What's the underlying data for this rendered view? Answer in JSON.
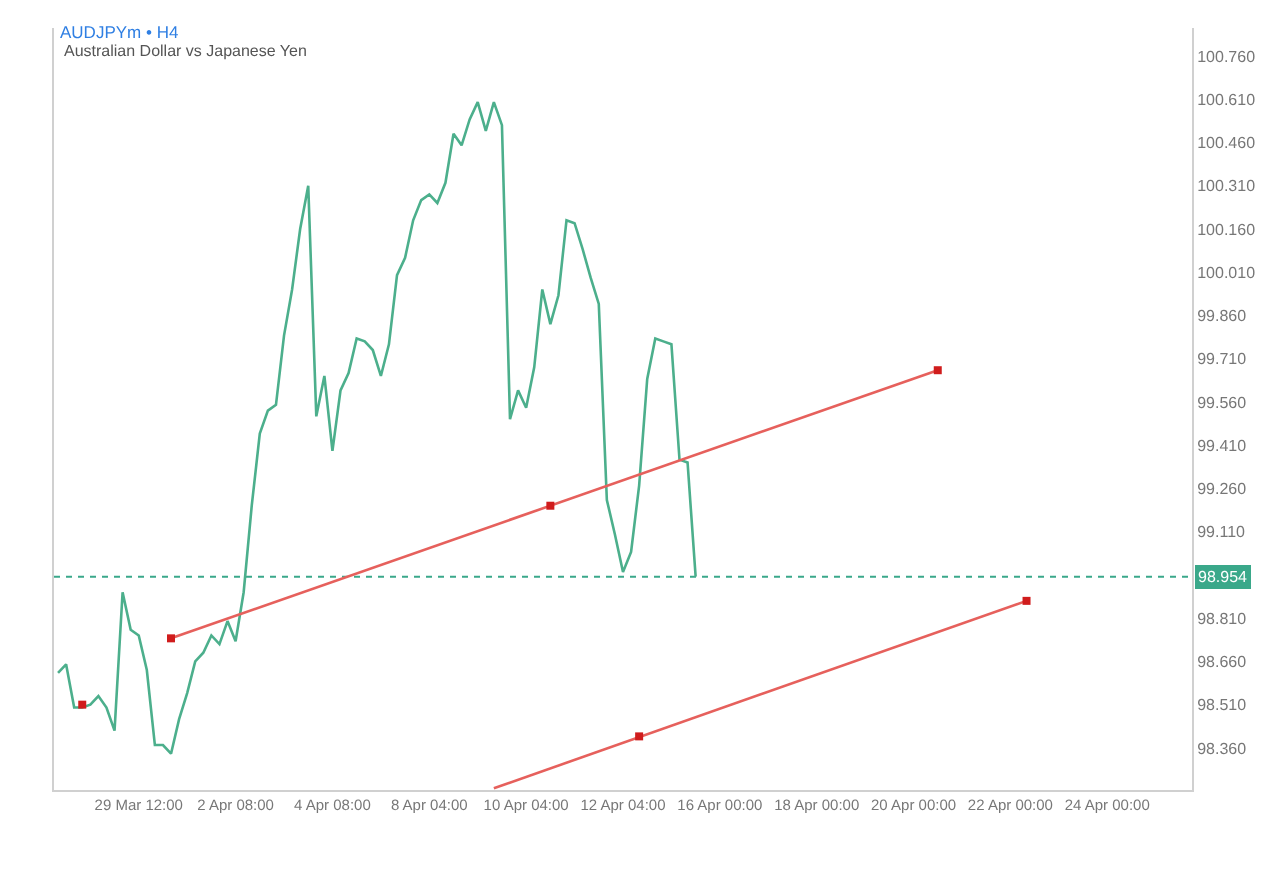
{
  "chart_data": {
    "type": "line",
    "title": "AUDJPYm • H4",
    "subtitle": "Australian Dollar vs Japanese Yen",
    "categories": [
      null,
      null,
      null,
      null,
      null,
      null,
      null,
      null,
      null,
      null,
      "29 Mar 12:00",
      null,
      null,
      null,
      null,
      null,
      null,
      null,
      null,
      null,
      null,
      null,
      "2 Apr 08:00",
      null,
      null,
      null,
      null,
      null,
      null,
      null,
      null,
      null,
      null,
      null,
      "4 Apr 08:00",
      null,
      null,
      null,
      null,
      null,
      null,
      null,
      null,
      null,
      null,
      null,
      "8 Apr 04:00",
      null,
      null,
      null,
      null,
      null,
      null,
      null,
      null,
      null,
      null,
      null,
      "10 Apr 04:00",
      null,
      null,
      null,
      null,
      null,
      null,
      null,
      null,
      null,
      null,
      null,
      "12 Apr 04:00",
      null,
      null,
      null,
      null,
      null,
      null,
      null,
      null,
      null,
      null,
      null,
      "16 Apr 00:00",
      null,
      null,
      null,
      null,
      null,
      null,
      null,
      null,
      null,
      null,
      null,
      "18 Apr 00:00",
      null,
      null,
      null,
      null,
      null,
      null,
      null,
      null,
      null,
      null,
      null,
      "20 Apr 00:00",
      null,
      null,
      null,
      null,
      null,
      null,
      null,
      null,
      null,
      null,
      null,
      "22 Apr 00:00",
      null,
      null,
      null,
      null,
      null,
      null,
      null,
      null,
      null,
      null,
      null,
      "24 Apr 00:00",
      null,
      null,
      null,
      null,
      null,
      null,
      null,
      null,
      null,
      null
    ],
    "ylim": [
      98.214,
      100.857
    ],
    "yticks": [
      {
        "value": 98.36,
        "label": "98.360"
      },
      {
        "value": 98.51,
        "label": "98.510"
      },
      {
        "value": 98.66,
        "label": "98.660"
      },
      {
        "value": 98.81,
        "label": "98.810"
      },
      {
        "value": 99.11,
        "label": "99.110"
      },
      {
        "value": 99.26,
        "label": "99.260"
      },
      {
        "value": 99.41,
        "label": "99.410"
      },
      {
        "value": 99.56,
        "label": "99.560"
      },
      {
        "value": 99.71,
        "label": "99.710"
      },
      {
        "value": 99.86,
        "label": "99.860"
      },
      {
        "value": 100.01,
        "label": "100.010"
      },
      {
        "value": 100.16,
        "label": "100.160"
      },
      {
        "value": 100.31,
        "label": "100.310"
      },
      {
        "value": 100.46,
        "label": "100.460"
      },
      {
        "value": 100.61,
        "label": "100.610"
      },
      {
        "value": 100.76,
        "label": "100.760"
      }
    ],
    "series": [
      {
        "color": "#4caf8c",
        "values": [
          98.62,
          98.65,
          98.5,
          98.5,
          98.51,
          98.54,
          98.5,
          98.42,
          98.9,
          98.77,
          98.75,
          98.63,
          98.37,
          98.37,
          98.34,
          98.46,
          98.55,
          98.66,
          98.69,
          98.75,
          98.72,
          98.8,
          98.73,
          98.9,
          99.2,
          99.45,
          99.53,
          99.55,
          99.79,
          99.95,
          100.16,
          100.31,
          99.51,
          99.65,
          99.39,
          99.6,
          99.66,
          99.78,
          99.77,
          99.74,
          99.65,
          99.76,
          100.0,
          100.06,
          100.19,
          100.26,
          100.28,
          100.25,
          100.32,
          100.49,
          100.45,
          100.54,
          100.6,
          100.5,
          100.6,
          100.52,
          99.5,
          99.6,
          99.54,
          99.68,
          99.95,
          99.83,
          99.93,
          100.19,
          100.18,
          100.09,
          99.99,
          99.9,
          99.22,
          99.1,
          98.97,
          99.04,
          99.27,
          99.64,
          99.78,
          99.77,
          99.76,
          99.36,
          99.35,
          98.954,
          null,
          null,
          null,
          null,
          null,
          null,
          null,
          null,
          null,
          null,
          null,
          null,
          null,
          null,
          null,
          null,
          null,
          null,
          null,
          null,
          null,
          null,
          null,
          null,
          null,
          null,
          null,
          null,
          null,
          null,
          null,
          null,
          null,
          null,
          null,
          null,
          null,
          null,
          null,
          null,
          null,
          null,
          null,
          null,
          null,
          null,
          null,
          null,
          null,
          null,
          null,
          null,
          null,
          null,
          null,
          null,
          null,
          null,
          null,
          null,
          null
        ]
      },
      {
        "type": "line",
        "color": "#e6605c",
        "values": [
          null,
          null,
          null,
          null,
          null,
          null,
          null,
          null,
          null,
          null,
          null,
          null,
          null,
          null,
          98.74,
          null,
          null,
          null,
          null,
          null,
          null,
          null,
          null,
          null,
          null,
          null,
          null,
          null,
          null,
          null,
          null,
          null,
          null,
          null,
          null,
          null,
          null,
          null,
          null,
          null,
          null,
          null,
          null,
          null,
          null,
          null,
          null,
          null,
          null,
          null,
          null,
          null,
          null,
          null,
          null,
          null,
          null,
          null,
          null,
          null,
          null,
          null,
          null,
          null,
          null,
          null,
          null,
          null,
          null,
          null,
          null,
          null,
          null,
          null,
          null,
          null,
          null,
          null,
          null,
          null,
          null,
          null,
          null,
          null,
          null,
          null,
          null,
          null,
          null,
          null,
          null,
          null,
          null,
          null,
          null,
          null,
          null,
          null,
          null,
          null,
          null,
          null,
          null,
          null,
          null,
          null,
          null,
          null,
          null,
          99.67,
          null,
          null,
          null,
          null,
          null,
          null,
          null,
          null,
          null,
          null,
          null,
          null,
          null,
          null,
          null,
          null,
          null,
          null,
          null,
          null,
          null,
          null,
          null,
          null,
          null,
          null,
          null,
          null,
          null,
          null,
          null
        ]
      },
      {
        "type": "line",
        "color": "#e6605c",
        "values": [
          null,
          null,
          null,
          null,
          null,
          null,
          null,
          null,
          null,
          null,
          null,
          null,
          null,
          null,
          null,
          null,
          null,
          null,
          null,
          null,
          null,
          null,
          null,
          null,
          null,
          null,
          null,
          null,
          null,
          null,
          null,
          null,
          null,
          null,
          null,
          null,
          null,
          null,
          null,
          null,
          null,
          null,
          null,
          null,
          null,
          null,
          null,
          null,
          null,
          null,
          null,
          null,
          null,
          null,
          98.22,
          null,
          null,
          null,
          null,
          null,
          null,
          null,
          null,
          null,
          null,
          null,
          null,
          null,
          null,
          null,
          null,
          null,
          null,
          null,
          null,
          null,
          null,
          null,
          null,
          null,
          null,
          null,
          null,
          null,
          null,
          null,
          null,
          null,
          null,
          null,
          null,
          null,
          null,
          null,
          null,
          null,
          null,
          null,
          null,
          null,
          null,
          null,
          null,
          null,
          null,
          null,
          null,
          null,
          null,
          null,
          null,
          null,
          null,
          null,
          null,
          null,
          null,
          null,
          null,
          null,
          98.87,
          null,
          null,
          null,
          null,
          null,
          null,
          null,
          null,
          null,
          null,
          null,
          null,
          null,
          null,
          null,
          null,
          null,
          null,
          null,
          null
        ]
      },
      {
        "type": "scatter",
        "color": "#d01c1c",
        "marker": "square",
        "values": [
          null,
          null,
          null,
          98.51,
          null,
          null,
          null,
          null,
          null,
          null,
          null,
          null,
          null,
          null,
          98.74,
          null,
          null,
          null,
          null,
          null,
          null,
          null,
          null,
          null,
          null,
          null,
          null,
          null,
          null,
          null,
          null,
          null,
          null,
          null,
          null,
          null,
          null,
          null,
          null,
          null,
          null,
          null,
          null,
          null,
          null,
          null,
          null,
          null,
          null,
          null,
          null,
          null,
          null,
          null,
          null,
          null,
          null,
          null,
          null,
          null,
          null,
          99.2,
          null,
          null,
          null,
          null,
          null,
          null,
          null,
          null,
          null,
          null,
          98.4,
          null,
          null,
          null,
          null,
          null,
          null,
          null,
          null,
          null,
          null,
          null,
          null,
          null,
          null,
          null,
          null,
          null,
          null,
          null,
          null,
          null,
          null,
          null,
          null,
          null,
          null,
          null,
          null,
          null,
          null,
          null,
          null,
          null,
          null,
          null,
          null,
          99.67,
          null,
          null,
          null,
          null,
          null,
          null,
          null,
          null,
          null,
          null,
          98.87,
          null,
          null,
          null,
          null,
          null,
          null,
          null,
          null,
          null,
          null,
          null,
          null,
          null,
          null,
          null,
          null,
          null,
          null,
          null,
          null
        ]
      }
    ],
    "ref_lines": [
      {
        "axis": "y",
        "value": 98.954,
        "label": "98.954",
        "color": "#3aa88a",
        "line_style": "dotted"
      }
    ]
  }
}
